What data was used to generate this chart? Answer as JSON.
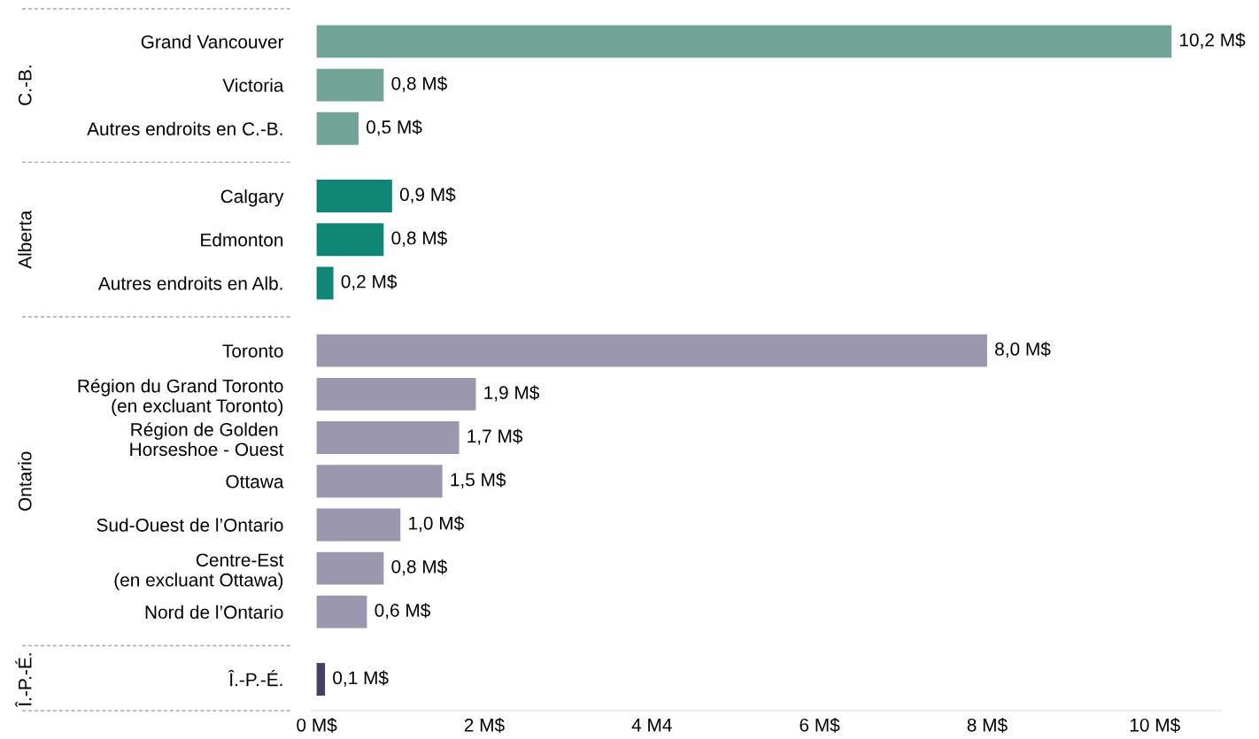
{
  "chart_data": {
    "type": "bar",
    "orientation": "horizontal",
    "categories": [
      "Grand Vancouver",
      "Victoria",
      "Autres endroits en C.-B.",
      "Calgary",
      "Edmonton",
      "Autres endroits en Alb.",
      "Toronto",
      "Région du Grand Toronto\n(en excluant Toronto)",
      "Région de Golden \nHorseshoe - Ouest",
      "Ottawa",
      "Sud-Ouest de l’Ontario",
      "Centre-Est\n(en excluant Ottawa)",
      "Nord de l’Ontario",
      "Î.-P.-É."
    ],
    "series": [
      {
        "color": "#72a597",
        "values": [
          10.2,
          0.8,
          0.5,
          null,
          null,
          null,
          null,
          null,
          null,
          null,
          null,
          null,
          null,
          null
        ],
        "value_labels": [
          "10,2 M$",
          "0,8 M$",
          "0,5 M$",
          null,
          null,
          null,
          null,
          null,
          null,
          null,
          null,
          null,
          null,
          null
        ]
      },
      {
        "color": "#0f8576",
        "values": [
          null,
          null,
          null,
          0.9,
          0.8,
          0.2,
          null,
          null,
          null,
          null,
          null,
          null,
          null,
          null
        ],
        "value_labels": [
          null,
          null,
          null,
          "0,9 M$",
          "0,8 M$",
          "0,2 M$",
          null,
          null,
          null,
          null,
          null,
          null,
          null,
          null
        ]
      },
      {
        "color": "#9b97ae",
        "values": [
          null,
          null,
          null,
          null,
          null,
          null,
          8.0,
          1.9,
          1.7,
          1.5,
          1.0,
          0.8,
          0.6,
          null
        ],
        "value_labels": [
          null,
          null,
          null,
          null,
          null,
          null,
          "8,0 M$",
          "1,9 M$",
          "1,7 M$",
          "1,5 M$",
          "1,0 M$",
          "0,8 M$",
          "0,6 M$",
          null
        ]
      },
      {
        "color": "#463f66",
        "values": [
          null,
          null,
          null,
          null,
          null,
          null,
          null,
          null,
          null,
          null,
          null,
          null,
          null,
          0.1
        ],
        "value_labels": [
          null,
          null,
          null,
          null,
          null,
          null,
          null,
          null,
          null,
          null,
          null,
          null,
          null,
          "0,1 M$"
        ]
      }
    ],
    "annotations": [
      "C.-B.",
      "Alberta",
      "Ontario",
      "Î.-P.-É."
    ],
    "xlim": [
      -0.07,
      10.8
    ],
    "xticks": [
      {
        "value": 0,
        "label": "0 M$"
      },
      {
        "value": 2,
        "label": "2 M$"
      },
      {
        "value": 4,
        "label": "4 M4"
      },
      {
        "value": 6,
        "label": "6 M$"
      },
      {
        "value": 8,
        "label": "8 M$"
      },
      {
        "value": 10,
        "label": "10 M$"
      }
    ],
    "grid": false,
    "legend": false
  }
}
